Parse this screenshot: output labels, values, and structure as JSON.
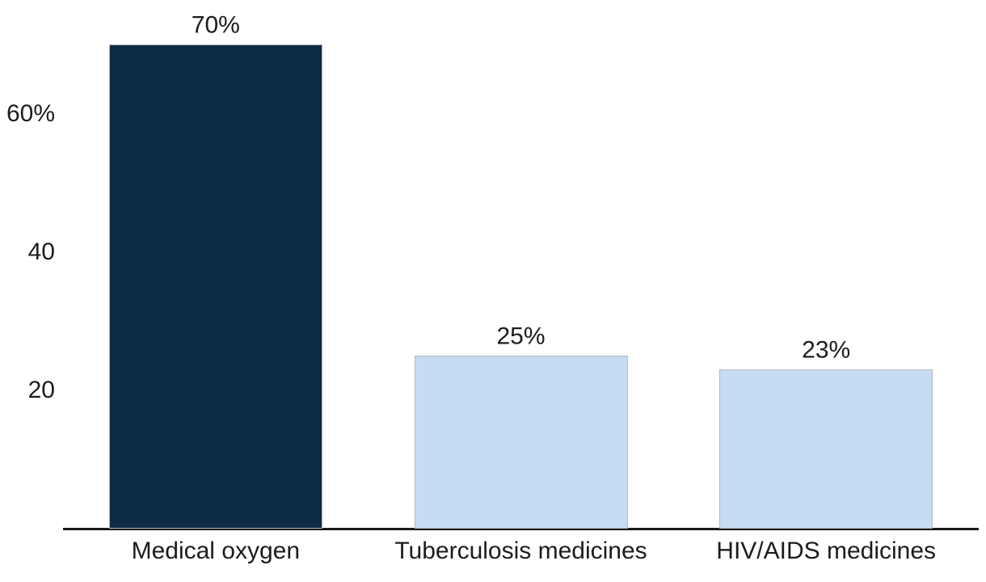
{
  "chart_data": {
    "type": "bar",
    "categories": [
      "Medical oxygen",
      "Tuberculosis medicines",
      "HIV/AIDS medicines"
    ],
    "values": [
      70,
      25,
      23
    ],
    "value_labels": [
      "70%",
      "25%",
      "23%"
    ],
    "bar_colors": [
      "#0d2a47",
      "#c6dcf2",
      "#c6dcf2"
    ],
    "bar_border_color": "#b5b8bd",
    "yticks": [
      {
        "value": 60,
        "label": "60%"
      },
      {
        "value": 40,
        "label": "40"
      },
      {
        "value": 20,
        "label": "20"
      }
    ],
    "ylim": [
      0,
      76
    ],
    "grid": false,
    "legend": false,
    "title": "",
    "xlabel": "",
    "ylabel": "",
    "axis_line_color": "#1a1a1c",
    "text_color": "#1c1c1e",
    "background": "#ffffff"
  }
}
